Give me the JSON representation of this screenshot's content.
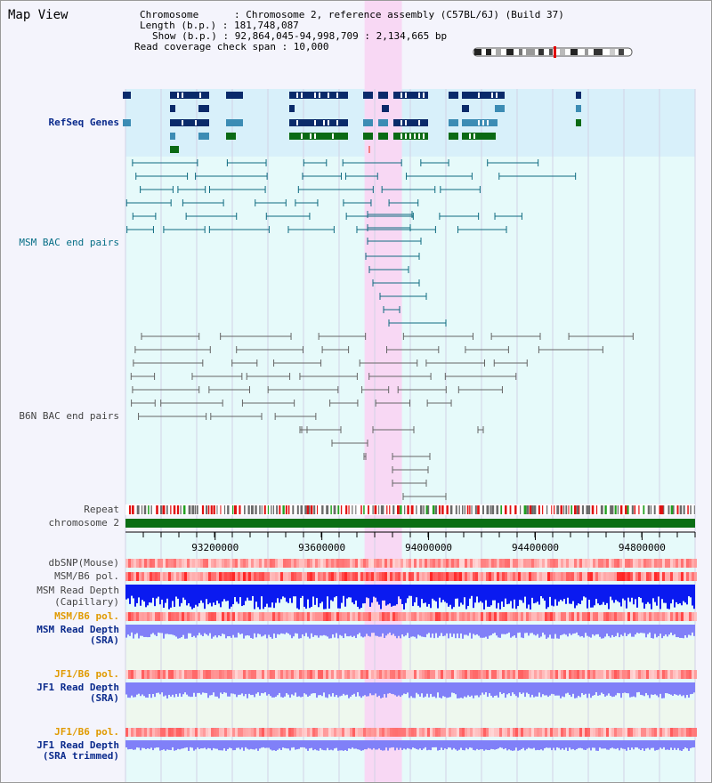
{
  "map_title": "Map View",
  "info": {
    "chromosome": "Chromosome      : Chromosome 2, reference assembly (C57BL/6J) (Build 37)",
    "length": "Length (b.p.) : 181,748,087",
    "show": "Show (b.p.) : 92,864,045-94,998,709 : 2,134,665 bp",
    "span": "Read coverage check span : 10,000"
  },
  "tracks": {
    "refseq": "RefSeq Genes",
    "msm_bac": "MSM BAC end pairs",
    "b6n_bac": "B6N BAC end pairs",
    "repeat": "Repeat",
    "chromosome": "chromosome 2",
    "dbsnp": "dbSNP(Mouse)",
    "msm_b6_pol_1": "MSM/B6 pol.",
    "msm_read_depth_cap_1": "MSM Read Depth",
    "msm_read_depth_cap_2": "(Capillary)",
    "msm_b6_pol_2": "MSM/B6 pol.",
    "msm_read_depth_sra_1": "MSM Read Depth",
    "msm_read_depth_sra_2": "(SRA)",
    "jf1_b6_pol_1": "JF1/B6 pol.",
    "jf1_read_depth_sra_1": "JF1 Read Depth",
    "jf1_read_depth_sra_2": "(SRA)",
    "jf1_b6_pol_2": "JF1/B6 pol.",
    "jf1_read_depth_trim_1": "JF1 Read Depth",
    "jf1_read_depth_trim_2": "(SRA trimmed)"
  },
  "axis": {
    "start": 92864045,
    "end": 94998709,
    "ticks": [
      "93200000",
      "93600000",
      "94000000",
      "94400000",
      "94800000"
    ]
  },
  "highlight": {
    "start": 93760000,
    "end": 93900000
  },
  "colors": {
    "refseq_bg": "#d8f0fa",
    "bac_bg": "#e6fafa",
    "highlight": "#f8d8f4",
    "gene_navy": "#0a2a6a",
    "gene_blue": "#3c8cb4",
    "gene_green": "#0a6a14",
    "msm_bac": "#0f6b80",
    "b6n_bac": "#666666",
    "depth_blue": "#0a1af0",
    "depth_light": "#8080f8",
    "pol_red": "#e81818",
    "chrom_green": "#0a6e14"
  }
}
